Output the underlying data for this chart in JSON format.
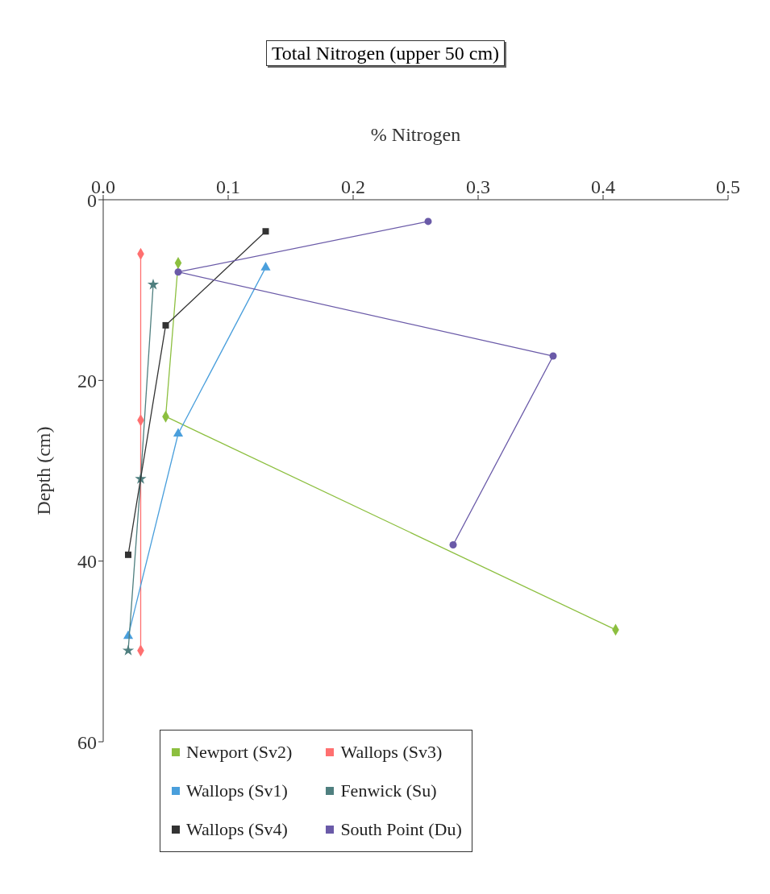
{
  "chart_data": {
    "type": "line",
    "title": "Total Nitrogen (upper 50 cm)",
    "xlabel": "% Nitrogen",
    "ylabel": "Depth (cm)",
    "xlim": [
      0,
      0.5
    ],
    "xticks": [
      {
        "value": 0,
        "label": "0.0"
      },
      0.1,
      0.2,
      0.3,
      0.4,
      0.5
    ],
    "ylim": [
      60,
      0
    ],
    "yticks": [
      0,
      20,
      40,
      60
    ],
    "grid": false,
    "legend": "bottom left",
    "series": [
      {
        "name": "Newport (Sv2)",
        "color": "#8cbf3f",
        "marker": "diamond",
        "x": [
          0.06,
          0.05,
          0.41
        ],
        "values": [
          7,
          24,
          47.6
        ]
      },
      {
        "name": "Wallops (Sv3)",
        "color": "#ff7070",
        "marker": "diamond",
        "x": [
          0.03,
          0.03,
          0.03
        ],
        "values": [
          6,
          24.4,
          49.9
        ]
      },
      {
        "name": "Wallops (Sv1)",
        "color": "#4a9fdc",
        "marker": "triangle",
        "x": [
          0.13,
          0.06,
          0.02
        ],
        "values": [
          7.5,
          25.9,
          48.3
        ]
      },
      {
        "name": "Fenwick (Su)",
        "color": "#4f7f7f",
        "marker": "star",
        "x": [
          0.04,
          0.03,
          0.02
        ],
        "values": [
          9.4,
          30.9,
          49.9
        ]
      },
      {
        "name": "Wallops (Sv4)",
        "color": "#333333",
        "marker": "square",
        "x": [
          0.13,
          0.05,
          0.02
        ],
        "values": [
          3.5,
          13.9,
          39.3
        ]
      },
      {
        "name": "South Point (Du)",
        "color": "#6a5aa8",
        "marker": "circle",
        "x": [
          0.26,
          0.06,
          0.36,
          0.28
        ],
        "values": [
          2.4,
          8,
          17.3,
          38.2
        ]
      }
    ]
  }
}
